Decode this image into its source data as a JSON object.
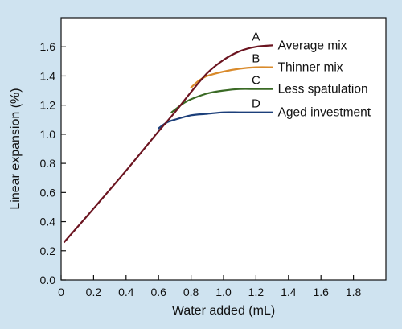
{
  "chart_data": {
    "type": "line",
    "title": "",
    "xlabel": "Water added (mL)",
    "ylabel": "Linear expansion (%)",
    "xlim": [
      0,
      2.0
    ],
    "ylim": [
      0,
      1.8
    ],
    "x_ticks": [
      "0",
      "0.2",
      "0.4",
      "0.6",
      "0.8",
      "1.0",
      "1.2",
      "1.4",
      "1.6",
      "1.8"
    ],
    "y_ticks": [
      "0.0",
      "0.2",
      "0.4",
      "0.6",
      "0.8",
      "1.0",
      "1.2",
      "1.4",
      "1.6"
    ],
    "grid": false,
    "series": [
      {
        "letter": "A",
        "name": "Average mix",
        "color": "#6b1420",
        "x": [
          0.02,
          0.2,
          0.4,
          0.6,
          0.7,
          0.8,
          0.9,
          1.0,
          1.1,
          1.2,
          1.3
        ],
        "y": [
          0.26,
          0.49,
          0.75,
          1.02,
          1.15,
          1.29,
          1.42,
          1.51,
          1.57,
          1.6,
          1.61
        ]
      },
      {
        "letter": "B",
        "name": "Thinner mix",
        "color": "#d98a2b",
        "x": [
          0.8,
          0.85,
          0.9,
          1.0,
          1.1,
          1.2,
          1.3
        ],
        "y": [
          1.32,
          1.37,
          1.4,
          1.43,
          1.45,
          1.46,
          1.46
        ]
      },
      {
        "letter": "C",
        "name": "Less spatulation",
        "color": "#3a6a25",
        "x": [
          0.68,
          0.75,
          0.8,
          0.9,
          1.0,
          1.1,
          1.2,
          1.3
        ],
        "y": [
          1.15,
          1.21,
          1.24,
          1.28,
          1.3,
          1.31,
          1.31,
          1.31
        ]
      },
      {
        "letter": "D",
        "name": "Aged investment",
        "color": "#1c3f7a",
        "x": [
          0.6,
          0.65,
          0.7,
          0.8,
          0.9,
          1.0,
          1.1,
          1.2,
          1.3
        ],
        "y": [
          1.04,
          1.08,
          1.1,
          1.13,
          1.14,
          1.15,
          1.15,
          1.15,
          1.15
        ]
      }
    ]
  }
}
